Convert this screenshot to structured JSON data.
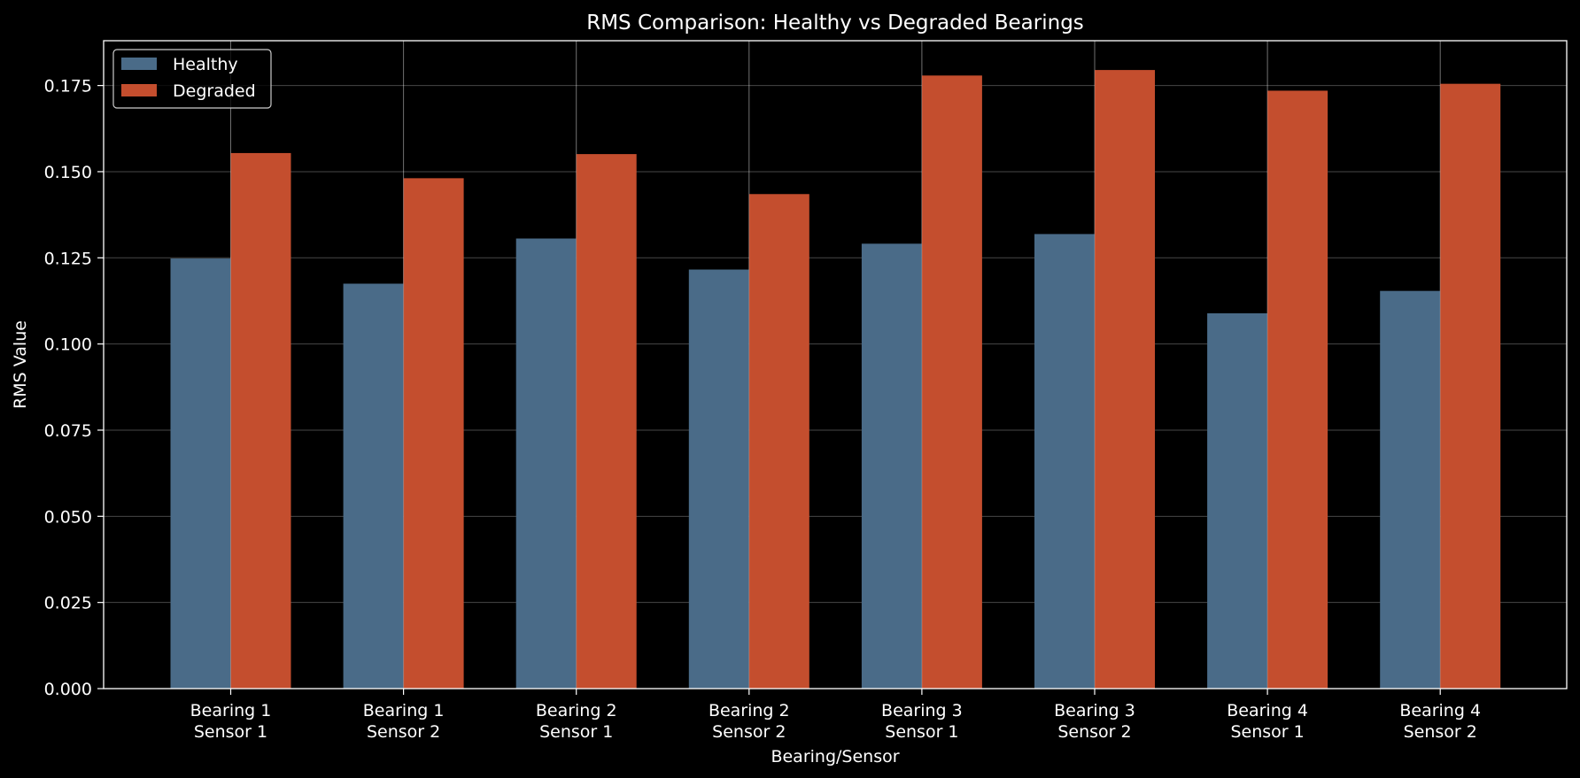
{
  "chart_data": {
    "type": "bar",
    "title": "RMS Comparison: Healthy vs Degraded Bearings",
    "xlabel": "Bearing/Sensor",
    "ylabel": "RMS Value",
    "ylim": [
      0,
      0.188
    ],
    "yticks": [
      "0.000",
      "0.025",
      "0.050",
      "0.075",
      "0.100",
      "0.125",
      "0.150",
      "0.175"
    ],
    "grid": true,
    "legend_position": "top-left",
    "categories": [
      [
        "Bearing 1",
        "Sensor 1"
      ],
      [
        "Bearing 1",
        "Sensor 2"
      ],
      [
        "Bearing 2",
        "Sensor 1"
      ],
      [
        "Bearing 2",
        "Sensor 2"
      ],
      [
        "Bearing 3",
        "Sensor 1"
      ],
      [
        "Bearing 3",
        "Sensor 2"
      ],
      [
        "Bearing 4",
        "Sensor 1"
      ],
      [
        "Bearing 4",
        "Sensor 2"
      ]
    ],
    "series": [
      {
        "name": "Healthy",
        "color": "#4a6b88",
        "values": [
          0.1248,
          0.1175,
          0.1306,
          0.1216,
          0.1291,
          0.1319,
          0.1089,
          0.1154
        ]
      },
      {
        "name": "Degraded",
        "color": "#c44e2e",
        "values": [
          0.1554,
          0.1481,
          0.1551,
          0.1435,
          0.1779,
          0.1795,
          0.1735,
          0.1755
        ]
      }
    ]
  }
}
